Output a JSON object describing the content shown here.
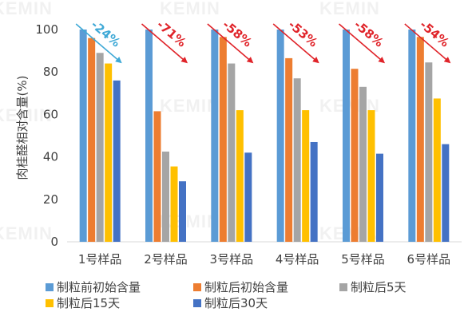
{
  "watermark": "KEMIN",
  "colors": {
    "axis": "#d9d9d9",
    "text": "#404040",
    "blue_arrow": "#3fa9d6",
    "red_arrow": "#e0242a"
  },
  "chart_data": {
    "type": "bar",
    "ylabel": "肉桂醛相对含量(%)",
    "ylim": [
      0,
      100
    ],
    "yticks": [
      0,
      20,
      40,
      60,
      80,
      100
    ],
    "categories": [
      "1号样品",
      "2号样品",
      "3号样品",
      "4号样品",
      "5号样品",
      "6号样品"
    ],
    "series": [
      {
        "name": "制粒前初始含量",
        "color": "#5b9bd5",
        "values": [
          100,
          100,
          100,
          100,
          100,
          100
        ]
      },
      {
        "name": "制粒后初始含量",
        "color": "#ed7d31",
        "values": [
          96,
          61.5,
          96.5,
          86.5,
          81.5,
          96.5
        ]
      },
      {
        "name": "制粒后5天",
        "color": "#a5a5a5",
        "values": [
          89,
          42.5,
          84,
          77,
          73,
          84.5
        ]
      },
      {
        "name": "制粒后15天",
        "color": "#ffc000",
        "values": [
          84,
          35.5,
          62,
          62,
          62,
          67.5
        ]
      },
      {
        "name": "制粒后30天",
        "color": "#4472c4",
        "values": [
          76,
          28.5,
          42,
          47,
          41.5,
          46
        ]
      }
    ],
    "annotations": [
      "-24%",
      "-71%",
      "-58%",
      "-53%",
      "-58%",
      "-54%"
    ],
    "annotation_colors": [
      "#3fa9d6",
      "#e0242a",
      "#e0242a",
      "#e0242a",
      "#e0242a",
      "#e0242a"
    ],
    "legend_position": "bottom"
  }
}
